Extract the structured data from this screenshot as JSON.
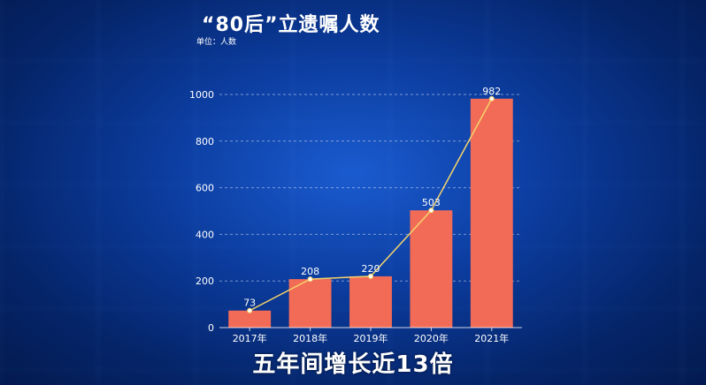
{
  "title": "“80后”立遗嘱人数",
  "unit_label": "单位：人数",
  "caption": "五年间增长近13倍",
  "chart_data": {
    "type": "bar",
    "categories": [
      "2017年",
      "2018年",
      "2019年",
      "2020年",
      "2021年"
    ],
    "values": [
      73,
      208,
      220,
      503,
      982
    ],
    "overlay_line": true,
    "ylim": [
      0,
      1000
    ],
    "yticks": [
      0,
      200,
      400,
      600,
      800,
      1000
    ],
    "grid": true,
    "bar_color": "#f26b57",
    "line_color": "#f5d46a"
  }
}
